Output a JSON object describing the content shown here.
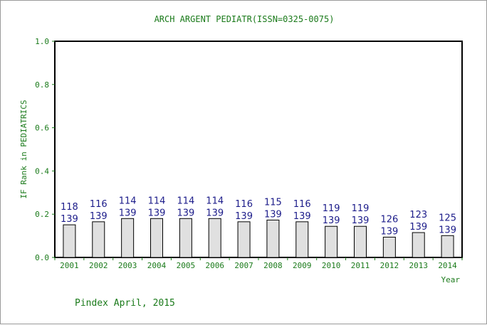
{
  "chart_data": {
    "type": "bar",
    "title": "ARCH ARGENT PEDIATR(ISSN=0325-0075)",
    "xlabel": "Year",
    "ylabel": "IF Rank in PEDIATRICS",
    "ylim": [
      0,
      1.0
    ],
    "yticks": [
      "0.0",
      "0.2",
      "0.4",
      "0.6",
      "0.8",
      "1.0"
    ],
    "categories": [
      "2001",
      "2002",
      "2003",
      "2004",
      "2005",
      "2006",
      "2007",
      "2008",
      "2009",
      "2010",
      "2011",
      "2012",
      "2013",
      "2014"
    ],
    "values": [
      0.151,
      0.165,
      0.18,
      0.18,
      0.18,
      0.18,
      0.165,
      0.173,
      0.165,
      0.144,
      0.144,
      0.094,
      0.115,
      0.101
    ],
    "labels": [
      [
        "118",
        "139"
      ],
      [
        "116",
        "139"
      ],
      [
        "114",
        "139"
      ],
      [
        "114",
        "139"
      ],
      [
        "114",
        "139"
      ],
      [
        "114",
        "139"
      ],
      [
        "116",
        "139"
      ],
      [
        "115",
        "139"
      ],
      [
        "116",
        "139"
      ],
      [
        "119",
        "139"
      ],
      [
        "119",
        "139"
      ],
      [
        "126",
        "139"
      ],
      [
        "123",
        "139"
      ],
      [
        "125",
        "139"
      ]
    ],
    "grid": false,
    "colors": {
      "bar_fill": "#e0e0e0",
      "bar_stroke": "#000000",
      "text_green": "#1a7a1a",
      "label_blue": "#1c1c8a"
    }
  },
  "footer": {
    "text": "Pindex April, 2015"
  }
}
